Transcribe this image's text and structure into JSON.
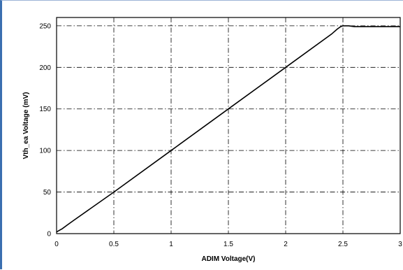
{
  "chart_data": {
    "type": "line",
    "xlabel": "ADIM Voltage(V)",
    "ylabel": "Vth_ea Voltage (mV)",
    "xlim": [
      0,
      3
    ],
    "ylim": [
      0,
      260
    ],
    "x_ticks": [
      0,
      0.5,
      1,
      1.5,
      2,
      2.5,
      3
    ],
    "x_tick_labels": [
      "0",
      "0.5",
      "1",
      "1.5",
      "2",
      "2.5",
      "3"
    ],
    "y_ticks": [
      0,
      50,
      100,
      150,
      200,
      250
    ],
    "y_tick_labels": [
      "0",
      "50",
      "100",
      "150",
      "200",
      "250"
    ],
    "grid": true,
    "series": [
      {
        "x": [
          0,
          0.05,
          0.1,
          0.15,
          0.5,
          1,
          1.5,
          2,
          2.4,
          2.45,
          2.48,
          2.5,
          2.55,
          2.6,
          3
        ],
        "values": [
          2,
          6,
          11,
          16,
          50,
          100,
          150,
          200,
          240,
          246,
          249,
          250,
          250,
          249,
          249
        ],
        "color": "#000000"
      }
    ]
  }
}
